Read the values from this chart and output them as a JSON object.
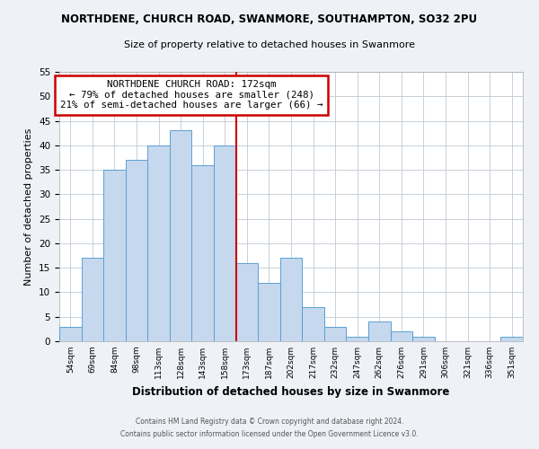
{
  "title": "NORTHDENE, CHURCH ROAD, SWANMORE, SOUTHAMPTON, SO32 2PU",
  "subtitle": "Size of property relative to detached houses in Swanmore",
  "xlabel": "Distribution of detached houses by size in Swanmore",
  "ylabel": "Number of detached properties",
  "bar_labels": [
    "54sqm",
    "69sqm",
    "84sqm",
    "98sqm",
    "113sqm",
    "128sqm",
    "143sqm",
    "158sqm",
    "173sqm",
    "187sqm",
    "202sqm",
    "217sqm",
    "232sqm",
    "247sqm",
    "262sqm",
    "276sqm",
    "291sqm",
    "306sqm",
    "321sqm",
    "336sqm",
    "351sqm"
  ],
  "bar_values": [
    3,
    17,
    35,
    37,
    40,
    43,
    36,
    40,
    16,
    12,
    17,
    7,
    3,
    1,
    4,
    2,
    1,
    0,
    0,
    0,
    1
  ],
  "bar_color": "#c5d8ed",
  "bar_edge_color": "#5a9fd4",
  "vline_x": 8,
  "vline_color": "#cc0000",
  "annotation_title": "NORTHDENE CHURCH ROAD: 172sqm",
  "annotation_line1": "← 79% of detached houses are smaller (248)",
  "annotation_line2": "21% of semi-detached houses are larger (66) →",
  "annotation_box_edge": "#cc0000",
  "ylim": [
    0,
    55
  ],
  "yticks": [
    0,
    5,
    10,
    15,
    20,
    25,
    30,
    35,
    40,
    45,
    50,
    55
  ],
  "footer1": "Contains HM Land Registry data © Crown copyright and database right 2024.",
  "footer2": "Contains public sector information licensed under the Open Government Licence v3.0.",
  "bg_color": "#eef2f7",
  "plot_bg_color": "#ffffff",
  "grid_color": "#c8d0d8"
}
